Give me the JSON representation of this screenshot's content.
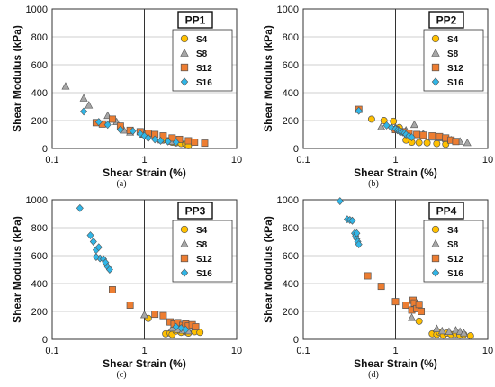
{
  "chart_data": [
    {
      "type": "scatter",
      "title": "PP1",
      "caption": "(a)",
      "xlabel": "Shear Strain (%)",
      "ylabel": "Shear Modulus (kPa)",
      "xscale": "log",
      "xlim": [
        0.1,
        10
      ],
      "ylim": [
        0,
        1000
      ],
      "xticks": [
        "0.1",
        "1",
        "10"
      ],
      "yticks": [
        "0",
        "200",
        "400",
        "600",
        "800",
        "1000"
      ],
      "grid": "major",
      "legend_position": "top-right",
      "series": [
        {
          "name": "S4",
          "marker": "circle",
          "color": "#FFC000",
          "points": [
            [
              1.6,
              60
            ],
            [
              1.8,
              55
            ],
            [
              2.0,
              45
            ],
            [
              2.2,
              40
            ],
            [
              2.5,
              35
            ],
            [
              2.8,
              30
            ],
            [
              3.0,
              20
            ]
          ]
        },
        {
          "name": "S8",
          "marker": "triangle",
          "color": "#A6A6A6",
          "points": [
            [
              0.14,
              445
            ],
            [
              0.22,
              360
            ],
            [
              0.25,
              310
            ],
            [
              0.4,
              235
            ],
            [
              0.5,
              190
            ],
            [
              0.6,
              130
            ],
            [
              0.7,
              115
            ],
            [
              1.0,
              100
            ],
            [
              1.5,
              60
            ],
            [
              2.0,
              50
            ]
          ]
        },
        {
          "name": "S12",
          "marker": "square",
          "color": "#ED7D31",
          "points": [
            [
              0.3,
              185
            ],
            [
              0.35,
              175
            ],
            [
              0.45,
              210
            ],
            [
              0.55,
              160
            ],
            [
              0.7,
              130
            ],
            [
              0.9,
              120
            ],
            [
              1.1,
              110
            ],
            [
              1.3,
              100
            ],
            [
              1.6,
              90
            ],
            [
              2.0,
              75
            ],
            [
              2.4,
              65
            ],
            [
              3.0,
              55
            ],
            [
              3.5,
              45
            ],
            [
              4.5,
              38
            ]
          ]
        },
        {
          "name": "S16",
          "marker": "diamond",
          "color": "#31B6E7",
          "points": [
            [
              0.22,
              265
            ],
            [
              0.32,
              190
            ],
            [
              0.4,
              170
            ],
            [
              0.55,
              135
            ],
            [
              0.75,
              125
            ],
            [
              0.9,
              105
            ],
            [
              1.0,
              90
            ],
            [
              1.1,
              75
            ],
            [
              1.3,
              65
            ],
            [
              1.5,
              55
            ],
            [
              1.8,
              50
            ],
            [
              2.2,
              45
            ]
          ]
        }
      ]
    },
    {
      "type": "scatter",
      "title": "PP2",
      "caption": "(b)",
      "xlabel": "Shear Strain (%)",
      "ylabel": "Shear Modulus (kPa)",
      "xscale": "log",
      "xlim": [
        0.1,
        10
      ],
      "ylim": [
        0,
        1000
      ],
      "xticks": [
        "0.1",
        "1",
        "10"
      ],
      "yticks": [
        "0",
        "200",
        "400",
        "600",
        "800",
        "1000"
      ],
      "grid": "major",
      "legend_position": "top-right",
      "series": [
        {
          "name": "S4",
          "marker": "circle",
          "color": "#FFC000",
          "points": [
            [
              0.55,
              210
            ],
            [
              0.75,
              200
            ],
            [
              0.95,
              195
            ],
            [
              1.1,
              150
            ],
            [
              1.3,
              60
            ],
            [
              1.5,
              45
            ],
            [
              1.8,
              42
            ],
            [
              2.2,
              40
            ],
            [
              2.8,
              35
            ],
            [
              3.5,
              30
            ]
          ]
        },
        {
          "name": "S8",
          "marker": "triangle",
          "color": "#A6A6A6",
          "points": [
            [
              0.7,
              155
            ],
            [
              1.0,
              150
            ],
            [
              1.3,
              130
            ],
            [
              1.6,
              170
            ],
            [
              2.0,
              105
            ],
            [
              2.5,
              80
            ],
            [
              3.0,
              75
            ],
            [
              3.5,
              70
            ],
            [
              4.0,
              60
            ],
            [
              5.0,
              50
            ],
            [
              6.0,
              40
            ]
          ]
        },
        {
          "name": "S12",
          "marker": "square",
          "color": "#ED7D31",
          "points": [
            [
              0.4,
              280
            ],
            [
              1.0,
              135
            ],
            [
              1.2,
              120
            ],
            [
              1.4,
              110
            ],
            [
              1.7,
              100
            ],
            [
              2.0,
              95
            ],
            [
              2.5,
              90
            ],
            [
              3.0,
              85
            ],
            [
              3.5,
              75
            ],
            [
              4.0,
              60
            ],
            [
              4.5,
              50
            ]
          ]
        },
        {
          "name": "S16",
          "marker": "diamond",
          "color": "#31B6E7",
          "points": [
            [
              0.4,
              270
            ],
            [
              0.8,
              165
            ],
            [
              0.9,
              150
            ],
            [
              1.0,
              140
            ],
            [
              1.05,
              130
            ],
            [
              1.1,
              125
            ],
            [
              1.15,
              120
            ],
            [
              1.2,
              115
            ],
            [
              1.25,
              110
            ],
            [
              1.3,
              100
            ],
            [
              1.4,
              90
            ],
            [
              1.5,
              80
            ]
          ]
        }
      ]
    },
    {
      "type": "scatter",
      "title": "PP3",
      "caption": "(c)",
      "xlabel": "Shear Strain (%)",
      "ylabel": "Shear Modulus (kPa)",
      "xscale": "log",
      "xlim": [
        0.1,
        10
      ],
      "ylim": [
        0,
        1000
      ],
      "xticks": [
        "0.1",
        "1",
        "10"
      ],
      "yticks": [
        "0",
        "200",
        "400",
        "600",
        "800",
        "1000"
      ],
      "grid": "major",
      "legend_position": "top-right",
      "series": [
        {
          "name": "S4",
          "marker": "circle",
          "color": "#FFC000",
          "points": [
            [
              1.1,
              150
            ],
            [
              1.7,
              40
            ],
            [
              1.9,
              45
            ],
            [
              2.0,
              35
            ],
            [
              2.2,
              60
            ],
            [
              2.5,
              50
            ],
            [
              2.8,
              55
            ],
            [
              3.0,
              45
            ],
            [
              3.5,
              55
            ],
            [
              4.0,
              50
            ]
          ]
        },
        {
          "name": "S8",
          "marker": "triangle",
          "color": "#A6A6A6",
          "points": [
            [
              1.0,
              175
            ],
            [
              2.0,
              80
            ],
            [
              2.3,
              70
            ],
            [
              2.6,
              65
            ],
            [
              3.0,
              60
            ]
          ]
        },
        {
          "name": "S12",
          "marker": "square",
          "color": "#ED7D31",
          "points": [
            [
              0.45,
              355
            ],
            [
              0.7,
              245
            ],
            [
              1.3,
              180
            ],
            [
              1.6,
              170
            ],
            [
              1.9,
              125
            ],
            [
              2.1,
              110
            ],
            [
              2.3,
              120
            ],
            [
              2.6,
              100
            ],
            [
              2.8,
              110
            ],
            [
              3.0,
              95
            ],
            [
              3.3,
              105
            ],
            [
              3.6,
              90
            ]
          ]
        },
        {
          "name": "S16",
          "marker": "diamond",
          "color": "#31B6E7",
          "points": [
            [
              0.2,
              940
            ],
            [
              0.26,
              745
            ],
            [
              0.28,
              700
            ],
            [
              0.3,
              640
            ],
            [
              0.32,
              660
            ],
            [
              0.33,
              580
            ],
            [
              0.36,
              575
            ],
            [
              0.38,
              550
            ],
            [
              0.4,
              520
            ],
            [
              0.42,
              500
            ],
            [
              0.3,
              590
            ],
            [
              2.2,
              90
            ],
            [
              2.5,
              80
            ],
            [
              2.8,
              70
            ]
          ]
        }
      ]
    },
    {
      "type": "scatter",
      "title": "PP4",
      "caption": "(d)",
      "xlabel": "Shear Strain (%)",
      "ylabel": "Shear Modulus (kPa)",
      "xscale": "log",
      "xlim": [
        0.1,
        10
      ],
      "ylim": [
        0,
        1000
      ],
      "xticks": [
        "0.1",
        "1",
        "10"
      ],
      "yticks": [
        "0",
        "200",
        "400",
        "600",
        "800",
        "1000"
      ],
      "grid": "major",
      "legend_position": "top-right",
      "series": [
        {
          "name": "S4",
          "marker": "circle",
          "color": "#FFC000",
          "points": [
            [
              1.8,
              130
            ],
            [
              2.5,
              40
            ],
            [
              2.8,
              35
            ],
            [
              3.0,
              50
            ],
            [
              3.3,
              30
            ],
            [
              3.6,
              45
            ],
            [
              4.0,
              35
            ],
            [
              4.5,
              40
            ],
            [
              5.0,
              30
            ],
            [
              5.5,
              35
            ],
            [
              6.5,
              25
            ]
          ]
        },
        {
          "name": "S8",
          "marker": "triangle",
          "color": "#A6A6A6",
          "points": [
            [
              1.5,
              155
            ],
            [
              2.8,
              75
            ],
            [
              3.2,
              60
            ],
            [
              3.8,
              55
            ],
            [
              4.5,
              65
            ],
            [
              5.0,
              55
            ],
            [
              5.5,
              45
            ]
          ]
        },
        {
          "name": "S12",
          "marker": "square",
          "color": "#ED7D31",
          "points": [
            [
              0.5,
              455
            ],
            [
              0.7,
              380
            ],
            [
              1.0,
              270
            ],
            [
              1.3,
              245
            ],
            [
              1.5,
              210
            ],
            [
              1.55,
              280
            ],
            [
              1.6,
              260
            ],
            [
              1.7,
              220
            ],
            [
              1.8,
              250
            ],
            [
              1.9,
              200
            ]
          ]
        },
        {
          "name": "S16",
          "marker": "diamond",
          "color": "#31B6E7",
          "points": [
            [
              0.25,
              990
            ],
            [
              0.3,
              860
            ],
            [
              0.32,
              855
            ],
            [
              0.34,
              850
            ],
            [
              0.36,
              760
            ],
            [
              0.37,
              740
            ],
            [
              0.38,
              720
            ],
            [
              0.39,
              700
            ],
            [
              0.4,
              680
            ],
            [
              0.38,
              760
            ]
          ]
        }
      ]
    }
  ]
}
